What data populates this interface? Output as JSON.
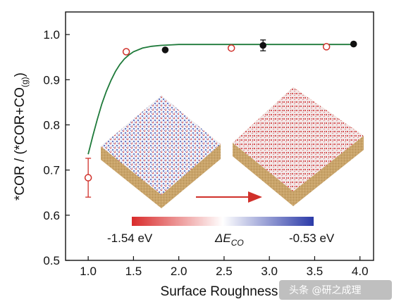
{
  "chart_data": {
    "type": "scatter",
    "xlabel": "Surface Roughness",
    "ylabel_main": "*COR / (*COR+CO",
    "ylabel_sub": "(g)",
    "ylabel_end": ")",
    "xlim": [
      0.75,
      4.15
    ],
    "ylim": [
      0.5,
      1.05
    ],
    "x_ticks": [
      "1.0",
      "1.5",
      "2.0",
      "2.5",
      "3.0",
      "3.5",
      "4.0"
    ],
    "x_tick_values": [
      1.0,
      1.5,
      2.0,
      2.5,
      3.0,
      3.5,
      4.0
    ],
    "y_ticks": [
      "0.5",
      "0.6",
      "0.7",
      "0.8",
      "0.9",
      "1.0"
    ],
    "y_tick_values": [
      0.5,
      0.6,
      0.7,
      0.8,
      0.9,
      1.0
    ],
    "grid": false,
    "series": [
      {
        "marker": "open-circle",
        "color": "#d0302a",
        "points": [
          {
            "x": 1.0,
            "y": 0.683,
            "err": 0.043
          },
          {
            "x": 1.42,
            "y": 0.962,
            "err": 0.0
          },
          {
            "x": 2.58,
            "y": 0.97,
            "err": 0.0
          },
          {
            "x": 3.63,
            "y": 0.973,
            "err": 0.0
          }
        ]
      },
      {
        "marker": "filled-circle",
        "color": "#111111",
        "points": [
          {
            "x": 1.85,
            "y": 0.966,
            "err": 0.0
          },
          {
            "x": 2.93,
            "y": 0.976,
            "err": 0.012
          },
          {
            "x": 3.93,
            "y": 0.979,
            "err": 0.0
          }
        ]
      }
    ],
    "fit_curve": {
      "color": "#1e7a3a",
      "x": [
        1.0,
        1.05,
        1.1,
        1.15,
        1.2,
        1.25,
        1.3,
        1.35,
        1.4,
        1.45,
        1.5,
        1.6,
        1.7,
        1.8,
        1.9,
        2.0,
        2.2,
        2.5,
        3.0,
        3.5,
        3.95
      ],
      "y": [
        0.735,
        0.775,
        0.812,
        0.846,
        0.874,
        0.898,
        0.918,
        0.934,
        0.946,
        0.955,
        0.962,
        0.97,
        0.974,
        0.976,
        0.977,
        0.978,
        0.978,
        0.978,
        0.978,
        0.978,
        0.978
      ]
    },
    "colorbar": {
      "label_left": "-1.54 eV",
      "label_center_symbol": "ΔE",
      "label_center_sub": "CO",
      "label_right": "-0.53 eV",
      "colors": [
        "#d92b2b",
        "#ffffff",
        "#2b3aa8"
      ]
    },
    "arrow_color": "#d0302a"
  },
  "watermark": "头条 @研之成理"
}
